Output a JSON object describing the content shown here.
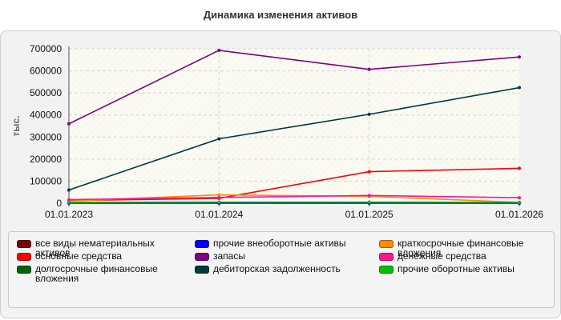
{
  "chart_data": {
    "type": "line",
    "title": "Динамика изменения активов",
    "ylabel": "тыс.",
    "x": [
      "01.01.2023",
      "01.01.2024",
      "01.01.2025",
      "01.01.2026"
    ],
    "y_ticks": [
      "0",
      "100000",
      "200000",
      "300000",
      "400000",
      "500000",
      "600000",
      "700000"
    ],
    "ylim": [
      0,
      700000
    ],
    "grid": true,
    "legend_position": "bottom",
    "series": [
      {
        "name": "все виды нематериальных активов",
        "color": "#7a0000",
        "values": [
          2000,
          2000,
          2000,
          2000
        ]
      },
      {
        "name": "основные средства",
        "color": "#ff0000",
        "values": [
          12000,
          22000,
          143000,
          158000
        ]
      },
      {
        "name": "долгосрочные финансовые вложения",
        "color": "#006400",
        "values": [
          1000,
          1000,
          1000,
          1000
        ]
      },
      {
        "name": "прочие внеоборотные активы",
        "color": "#0000ff",
        "values": [
          0,
          0,
          0,
          0
        ]
      },
      {
        "name": "запасы",
        "color": "#800080",
        "values": [
          360000,
          693000,
          607000,
          663000
        ]
      },
      {
        "name": "дебиторская задолженность",
        "color": "#003a3a",
        "values": [
          60000,
          292000,
          403000,
          524000
        ]
      },
      {
        "name": "краткосрочные финансовые вложения",
        "color": "#ff8c00",
        "values": [
          10000,
          38000,
          31000,
          4000
        ]
      },
      {
        "name": "денежные средства",
        "color": "#ff1493",
        "values": [
          16000,
          26000,
          35000,
          25000
        ]
      },
      {
        "name": "прочие оборотные активы",
        "color": "#00c000",
        "values": [
          4000,
          5000,
          5000,
          4000
        ]
      }
    ]
  }
}
